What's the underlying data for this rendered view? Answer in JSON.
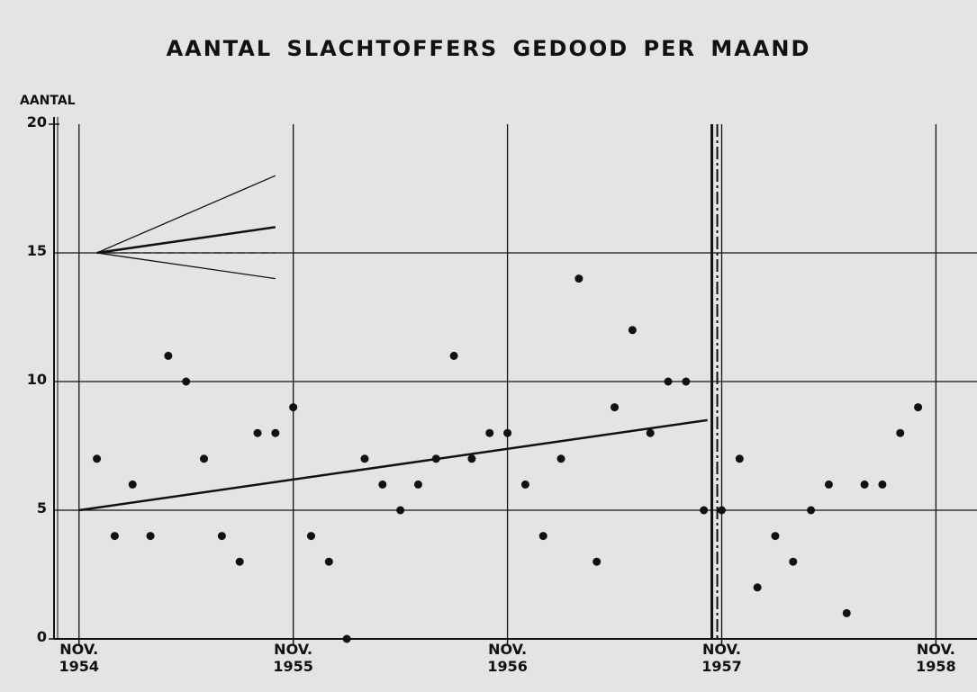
{
  "chart_data": {
    "type": "scatter",
    "title": "AANTAL SLACHTOFFERS GEDOOD    PER MAAND",
    "y_label": "AANTAL",
    "xlim": [
      -1.4,
      50.3
    ],
    "ylim": [
      0,
      20
    ],
    "xticks": [
      {
        "value": 0,
        "label": "NOV. 1954"
      },
      {
        "value": 12,
        "label": "NOV. 1955"
      },
      {
        "value": 24,
        "label": "NOV. 1956"
      },
      {
        "value": 36,
        "label": "NOV. 1957"
      },
      {
        "value": 48,
        "label": "NOV. 1958"
      }
    ],
    "yticks": [
      0,
      5,
      10,
      15,
      20
    ],
    "grid": true,
    "color": "#111111",
    "series": [
      {
        "color": "#111111",
        "x": [
          1,
          2,
          3,
          4,
          5,
          6,
          7,
          8,
          9,
          10,
          11,
          12,
          13,
          14,
          15,
          16,
          17,
          18,
          19,
          20,
          21,
          22,
          23,
          24,
          25,
          26,
          27,
          28,
          29,
          30,
          31,
          32,
          33,
          34,
          35,
          36,
          37,
          38,
          39,
          40,
          41,
          42,
          43,
          44,
          45,
          46,
          47
        ],
        "values": [
          7,
          4,
          6,
          4,
          11,
          10,
          7,
          4,
          3,
          8,
          8,
          9,
          4,
          3,
          0,
          7,
          6,
          5,
          6,
          7,
          11,
          7,
          8,
          8,
          6,
          4,
          7,
          14,
          3,
          9,
          12,
          8,
          10,
          10,
          5,
          5,
          7,
          2,
          4,
          3,
          5,
          6,
          1,
          6,
          6,
          8,
          9
        ]
      }
    ],
    "lines": [
      {
        "x": [
          0,
          35.2
        ],
        "y": [
          5,
          8.5
        ],
        "width": 2.5
      },
      {
        "x": [
          1,
          11
        ],
        "y": [
          15,
          18
        ],
        "width": 1.3
      },
      {
        "x": [
          1,
          11
        ],
        "y": [
          15,
          16
        ],
        "width": 2.5
      },
      {
        "x": [
          1,
          11
        ],
        "y": [
          15,
          14
        ],
        "width": 1.3
      },
      {
        "x": [
          1,
          11
        ],
        "y": [
          15,
          15
        ],
        "width": 1.3,
        "dashed": true
      }
    ],
    "break_x": 35.6
  }
}
